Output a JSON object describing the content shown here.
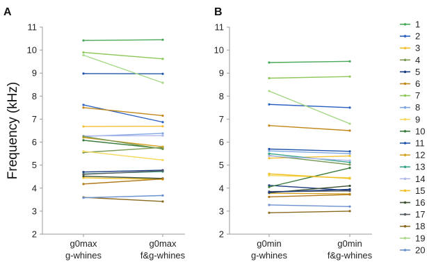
{
  "chart_data": [
    {
      "panel": "A",
      "type": "line",
      "categories": [
        "g0max\ng-whines",
        "g0max\nf&g-whines"
      ],
      "ylabel": "Frequency (kHz)",
      "ylim": [
        2,
        11
      ],
      "yticks": [
        2,
        3,
        4,
        5,
        6,
        7,
        8,
        9,
        10,
        11
      ],
      "grid": false,
      "series": [
        {
          "name": "1",
          "color": "#4aa85a",
          "values": [
            10.42,
            10.45
          ]
        },
        {
          "name": "2",
          "color": "#2a5fc0",
          "values": [
            7.62,
            6.87
          ]
        },
        {
          "name": "3",
          "color": "#f2c030",
          "values": [
            6.68,
            6.69
          ]
        },
        {
          "name": "4",
          "color": "#7a9a55",
          "values": [
            5.55,
            5.77
          ]
        },
        {
          "name": "5",
          "color": "#1a3a80",
          "values": [
            4.7,
            4.78
          ]
        },
        {
          "name": "6",
          "color": "#c08818",
          "values": [
            7.5,
            7.15
          ]
        },
        {
          "name": "7",
          "color": "#8ec85a",
          "values": [
            9.9,
            9.62
          ]
        },
        {
          "name": "8",
          "color": "#7ea6e0",
          "values": [
            6.25,
            6.38
          ]
        },
        {
          "name": "9",
          "color": "#f6d860",
          "values": [
            5.6,
            5.22
          ]
        },
        {
          "name": "10",
          "color": "#3a7a3a",
          "values": [
            6.08,
            5.72
          ]
        },
        {
          "name": "11",
          "color": "#2255aa",
          "values": [
            8.98,
            8.97
          ]
        },
        {
          "name": "12",
          "color": "#d4a020",
          "values": [
            6.2,
            5.8
          ]
        },
        {
          "name": "13",
          "color": "#3aa58a",
          "values": [
            4.62,
            4.72
          ]
        },
        {
          "name": "14",
          "color": "#b0b8ec",
          "values": [
            6.27,
            6.28
          ]
        },
        {
          "name": "15",
          "color": "#f0c020",
          "values": [
            4.45,
            4.38
          ]
        },
        {
          "name": "16",
          "color": "#3a5030",
          "values": [
            4.52,
            4.42
          ]
        },
        {
          "name": "17",
          "color": "#555a60",
          "values": [
            4.6,
            4.75
          ]
        },
        {
          "name": "18",
          "color": "#8a6a20",
          "values": [
            3.6,
            3.42
          ]
        },
        {
          "name": "19",
          "color": "#a8d88a",
          "values": [
            9.78,
            8.58
          ]
        },
        {
          "name": "20",
          "color": "#6a90d0",
          "values": [
            3.58,
            3.68
          ]
        },
        {
          "name": "",
          "color": "#b07818",
          "values": [
            4.18,
            4.4
          ]
        },
        {
          "name": "",
          "color": "#7a9a55",
          "values": [
            6.25,
            5.7
          ]
        }
      ]
    },
    {
      "panel": "B",
      "type": "line",
      "categories": [
        "g0min\ng-whines",
        "g0min\nf&g-whines"
      ],
      "ylabel": "",
      "ylim": [
        2,
        11
      ],
      "yticks": [
        2,
        3,
        4,
        5,
        6,
        7,
        8,
        9,
        10,
        11
      ],
      "grid": false,
      "series": [
        {
          "name": "1",
          "color": "#4aa85a",
          "values": [
            9.46,
            9.51
          ]
        },
        {
          "name": "2",
          "color": "#2a5fc0",
          "values": [
            7.64,
            7.5
          ]
        },
        {
          "name": "3",
          "color": "#f2c030",
          "values": [
            5.3,
            5.4
          ]
        },
        {
          "name": "4",
          "color": "#7a9a55",
          "values": [
            5.42,
            5.02
          ]
        },
        {
          "name": "5",
          "color": "#1a3a80",
          "values": [
            4.12,
            3.9
          ]
        },
        {
          "name": "6",
          "color": "#c08818",
          "values": [
            6.72,
            6.5
          ]
        },
        {
          "name": "7",
          "color": "#8ec85a",
          "values": [
            8.78,
            8.85
          ]
        },
        {
          "name": "8",
          "color": "#7ea6e0",
          "values": [
            5.62,
            5.5
          ]
        },
        {
          "name": "9",
          "color": "#f6d860",
          "values": [
            4.55,
            4.45
          ]
        },
        {
          "name": "10",
          "color": "#3a7a3a",
          "values": [
            4.05,
            4.88
          ]
        },
        {
          "name": "11",
          "color": "#2255aa",
          "values": [
            5.7,
            5.6
          ]
        },
        {
          "name": "12",
          "color": "#d4a020",
          "values": [
            3.78,
            3.75
          ]
        },
        {
          "name": "13",
          "color": "#3aa58a",
          "values": [
            5.5,
            5.12
          ]
        },
        {
          "name": "14",
          "color": "#b0b8ec",
          "values": [
            5.4,
            5.2
          ]
        },
        {
          "name": "15",
          "color": "#f0c020",
          "values": [
            4.62,
            4.42
          ]
        },
        {
          "name": "16",
          "color": "#3a5030",
          "values": [
            3.8,
            4.1
          ]
        },
        {
          "name": "17",
          "color": "#555a60",
          "values": [
            3.85,
            3.88
          ]
        },
        {
          "name": "18",
          "color": "#8a6a20",
          "values": [
            2.93,
            3.0
          ]
        },
        {
          "name": "19",
          "color": "#a8d88a",
          "values": [
            8.22,
            6.8
          ]
        },
        {
          "name": "20",
          "color": "#6a90d0",
          "values": [
            3.27,
            3.2
          ]
        },
        {
          "name": "",
          "color": "#b07818",
          "values": [
            3.62,
            3.72
          ]
        },
        {
          "name": "",
          "color": "#1a3a80",
          "values": [
            3.82,
            3.95
          ]
        }
      ]
    }
  ],
  "legend": {
    "placement": "right",
    "items": [
      {
        "label": "1",
        "color": "#4aa85a"
      },
      {
        "label": "2",
        "color": "#2a5fc0"
      },
      {
        "label": "3",
        "color": "#f2c030"
      },
      {
        "label": "4",
        "color": "#7a9a55"
      },
      {
        "label": "5",
        "color": "#1a3a80"
      },
      {
        "label": "6",
        "color": "#c08818"
      },
      {
        "label": "7",
        "color": "#8ec85a"
      },
      {
        "label": "8",
        "color": "#7ea6e0"
      },
      {
        "label": "9",
        "color": "#f6d860"
      },
      {
        "label": "10",
        "color": "#3a7a3a"
      },
      {
        "label": "11",
        "color": "#2255aa"
      },
      {
        "label": "12",
        "color": "#d4a020"
      },
      {
        "label": "13",
        "color": "#3aa58a"
      },
      {
        "label": "14",
        "color": "#b0b8ec"
      },
      {
        "label": "15",
        "color": "#f0c020"
      },
      {
        "label": "16",
        "color": "#3a5030"
      },
      {
        "label": "17",
        "color": "#555a60"
      },
      {
        "label": "18",
        "color": "#8a6a20"
      },
      {
        "label": "19",
        "color": "#a8d88a"
      },
      {
        "label": "20",
        "color": "#6a90d0"
      }
    ]
  }
}
